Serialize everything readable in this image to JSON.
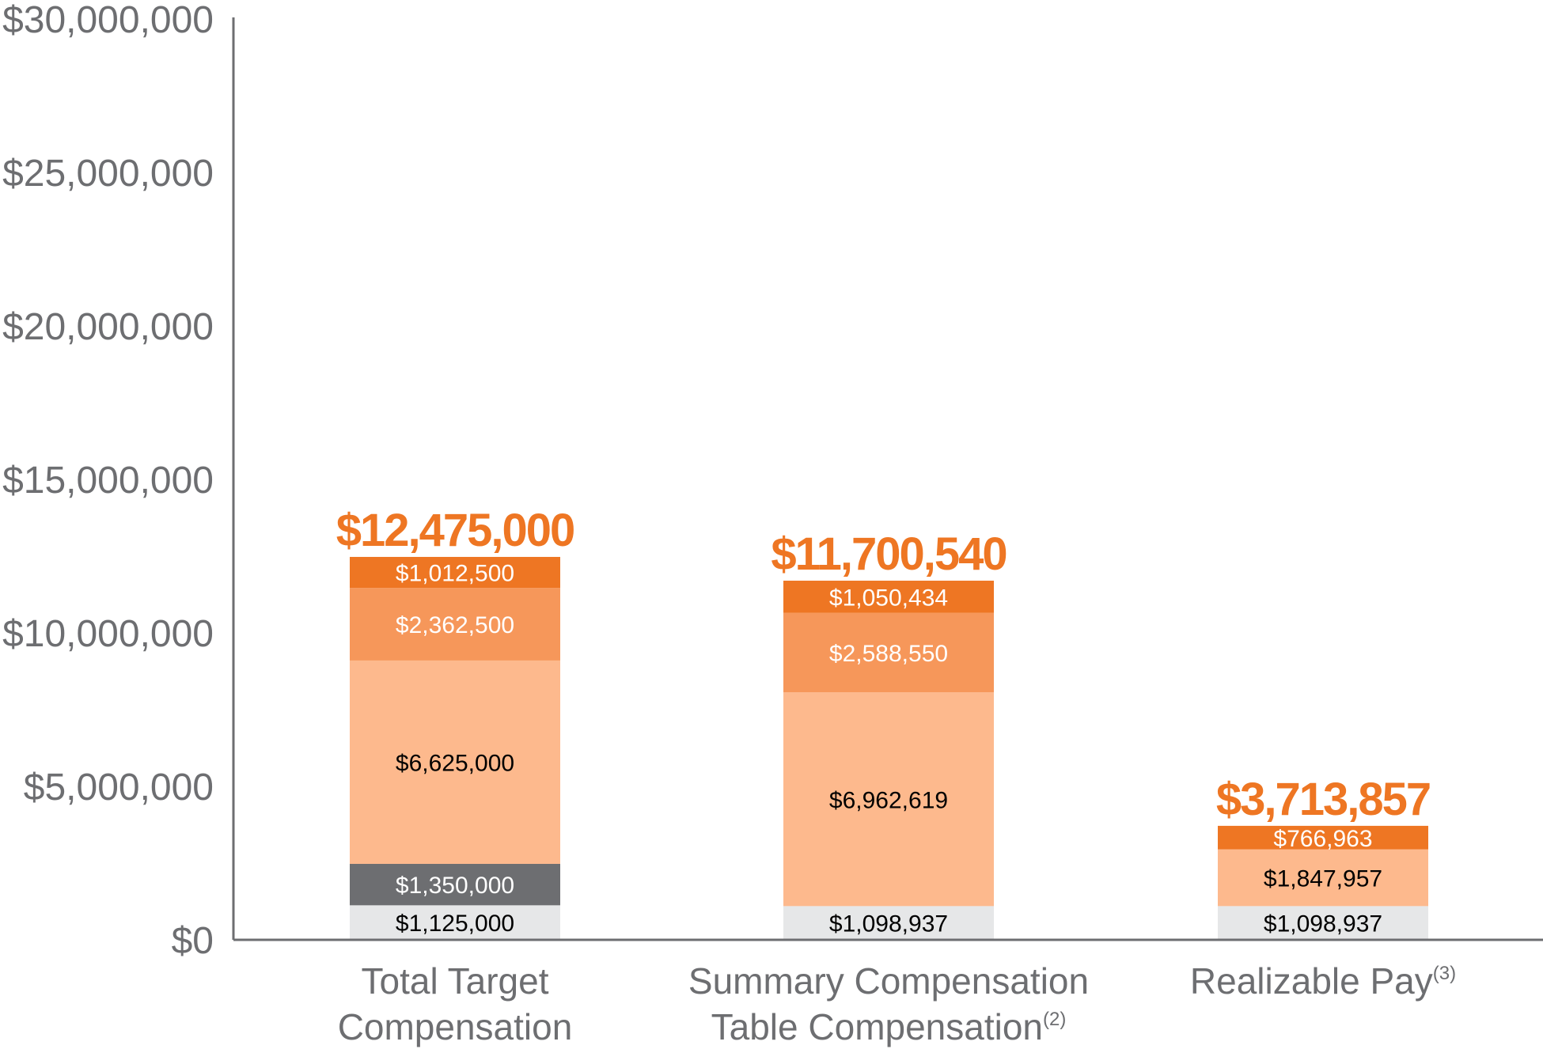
{
  "chart_data": {
    "type": "bar",
    "stacked": true,
    "ylim": [
      0,
      30000000
    ],
    "yticks": [
      {
        "value": 0,
        "label": "$0"
      },
      {
        "value": 5000000,
        "label": "$5,000,000"
      },
      {
        "value": 10000000,
        "label": "$10,000,000"
      },
      {
        "value": 15000000,
        "label": "$15,000,000"
      },
      {
        "value": 20000000,
        "label": "$20,000,000"
      },
      {
        "value": 25000000,
        "label": "$25,000,000"
      },
      {
        "value": 30000000,
        "label": "$30,000,000"
      }
    ],
    "colors": {
      "total_text": "#ee7623",
      "axis": "#6d6e71"
    },
    "bars": [
      {
        "category": [
          "Total Target",
          "Compensation"
        ],
        "footnote": "",
        "total": 12475000,
        "total_label": "$12,475,000",
        "segments": [
          {
            "value": 1125000,
            "label": "$1,125,000",
            "color": "#e6e7e8",
            "text_color": "#000000"
          },
          {
            "value": 1350000,
            "label": "$1,350,000",
            "color": "#6d6e71",
            "text_color": "#ffffff"
          },
          {
            "value": 6625000,
            "label": "$6,625,000",
            "color": "#fdb98d",
            "text_color": "#000000"
          },
          {
            "value": 2362500,
            "label": "$2,362,500",
            "color": "#f6975a",
            "text_color": "#ffffff"
          },
          {
            "value": 1012500,
            "label": "$1,012,500",
            "color": "#ee7623",
            "text_color": "#ffffff"
          }
        ]
      },
      {
        "category": [
          "Summary Compensation",
          "Table Compensation"
        ],
        "footnote": "(2)",
        "total": 11700540,
        "total_label": "$11,700,540",
        "segments": [
          {
            "value": 1098937,
            "label": "$1,098,937",
            "color": "#e6e7e8",
            "text_color": "#000000"
          },
          {
            "value": 6962619,
            "label": "$6,962,619",
            "color": "#fdb98d",
            "text_color": "#000000"
          },
          {
            "value": 2588550,
            "label": "$2,588,550",
            "color": "#f6975a",
            "text_color": "#ffffff"
          },
          {
            "value": 1050434,
            "label": "$1,050,434",
            "color": "#ee7623",
            "text_color": "#ffffff"
          }
        ]
      },
      {
        "category": [
          "Realizable Pay"
        ],
        "footnote": "(3)",
        "total": 3713857,
        "total_label": "$3,713,857",
        "segments": [
          {
            "value": 1098937,
            "label": "$1,098,937",
            "color": "#e6e7e8",
            "text_color": "#000000"
          },
          {
            "value": 1847957,
            "label": "$1,847,957",
            "color": "#fdb98d",
            "text_color": "#000000"
          },
          {
            "value": 766963,
            "label": "$766,963",
            "color": "#ee7623",
            "text_color": "#ffffff"
          }
        ]
      }
    ]
  }
}
